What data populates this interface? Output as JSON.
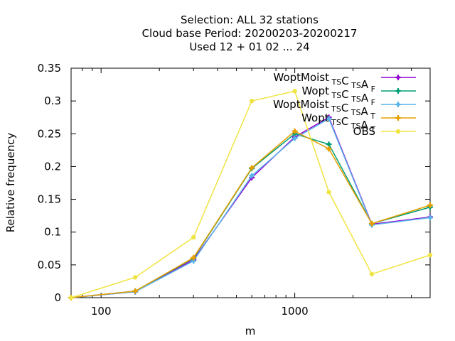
{
  "chart_data": {
    "type": "line",
    "title_lines": [
      "Selection: ALL      32 stations",
      "Cloud base  Period: 20200203-20200217",
      "Used  12 + 01 02 ... 24"
    ],
    "xlabel": "m",
    "ylabel": "Relative frequency",
    "x_scale": "log",
    "xlim": [
      70,
      5000
    ],
    "ylim": [
      0,
      0.35
    ],
    "x_ticks": [
      {
        "value": 100,
        "label": "100"
      },
      {
        "value": 1000,
        "label": "1000"
      }
    ],
    "y_ticks": [
      {
        "value": 0,
        "label": "0"
      },
      {
        "value": 0.05,
        "label": "0.05"
      },
      {
        "value": 0.1,
        "label": "0.1"
      },
      {
        "value": 0.15,
        "label": "0.15"
      },
      {
        "value": 0.2,
        "label": "0.2"
      },
      {
        "value": 0.25,
        "label": "0.25"
      },
      {
        "value": 0.3,
        "label": "0.3"
      },
      {
        "value": 0.35,
        "label": "0.35"
      }
    ],
    "grid": false,
    "legend_position": "top-right",
    "x": [
      70,
      150,
      300,
      600,
      1000,
      1500,
      2500,
      5000
    ],
    "series": [
      {
        "name": "WoptMoist TS CTS A F",
        "label_main": "WoptMoist",
        "label_parts": [
          [
            "",
            "TS"
          ],
          [
            "C",
            "TS"
          ],
          [
            "A",
            "F"
          ]
        ],
        "color": "#9400d3",
        "marker": "plus",
        "values": [
          0.0,
          0.009,
          0.058,
          0.183,
          0.245,
          0.275,
          0.112,
          0.123
        ]
      },
      {
        "name": "Wopt TS CTS A F",
        "label_main": "Wopt",
        "label_parts": [
          [
            "",
            "TS"
          ],
          [
            "C",
            "TS"
          ],
          [
            "A",
            "F"
          ]
        ],
        "color": "#009e73",
        "marker": "plus",
        "values": [
          0.0,
          0.01,
          0.06,
          0.197,
          0.25,
          0.234,
          0.113,
          0.138
        ]
      },
      {
        "name": "WoptMoist TS CTS A T",
        "label_main": "WoptMoist",
        "label_parts": [
          [
            "",
            "TS"
          ],
          [
            "C",
            "TS"
          ],
          [
            "A",
            "T"
          ]
        ],
        "color": "#56b4e9",
        "marker": "plus",
        "values": [
          0.0,
          0.009,
          0.056,
          0.186,
          0.243,
          0.273,
          0.111,
          0.122
        ]
      },
      {
        "name": "Wopt TS CTS A T",
        "label_main": "Wopt",
        "label_parts": [
          [
            "",
            "TS"
          ],
          [
            "C",
            "TS"
          ],
          [
            "A",
            "T"
          ]
        ],
        "color": "#e69f00",
        "marker": "plus",
        "values": [
          0.0,
          0.01,
          0.061,
          0.198,
          0.254,
          0.227,
          0.113,
          0.141
        ]
      },
      {
        "name": "OBS",
        "label_main": "OBS",
        "label_parts": [],
        "color": "#f0e442",
        "marker": "dot",
        "values": [
          0.0,
          0.031,
          0.092,
          0.3,
          0.315,
          0.161,
          0.036,
          0.065
        ]
      }
    ]
  }
}
